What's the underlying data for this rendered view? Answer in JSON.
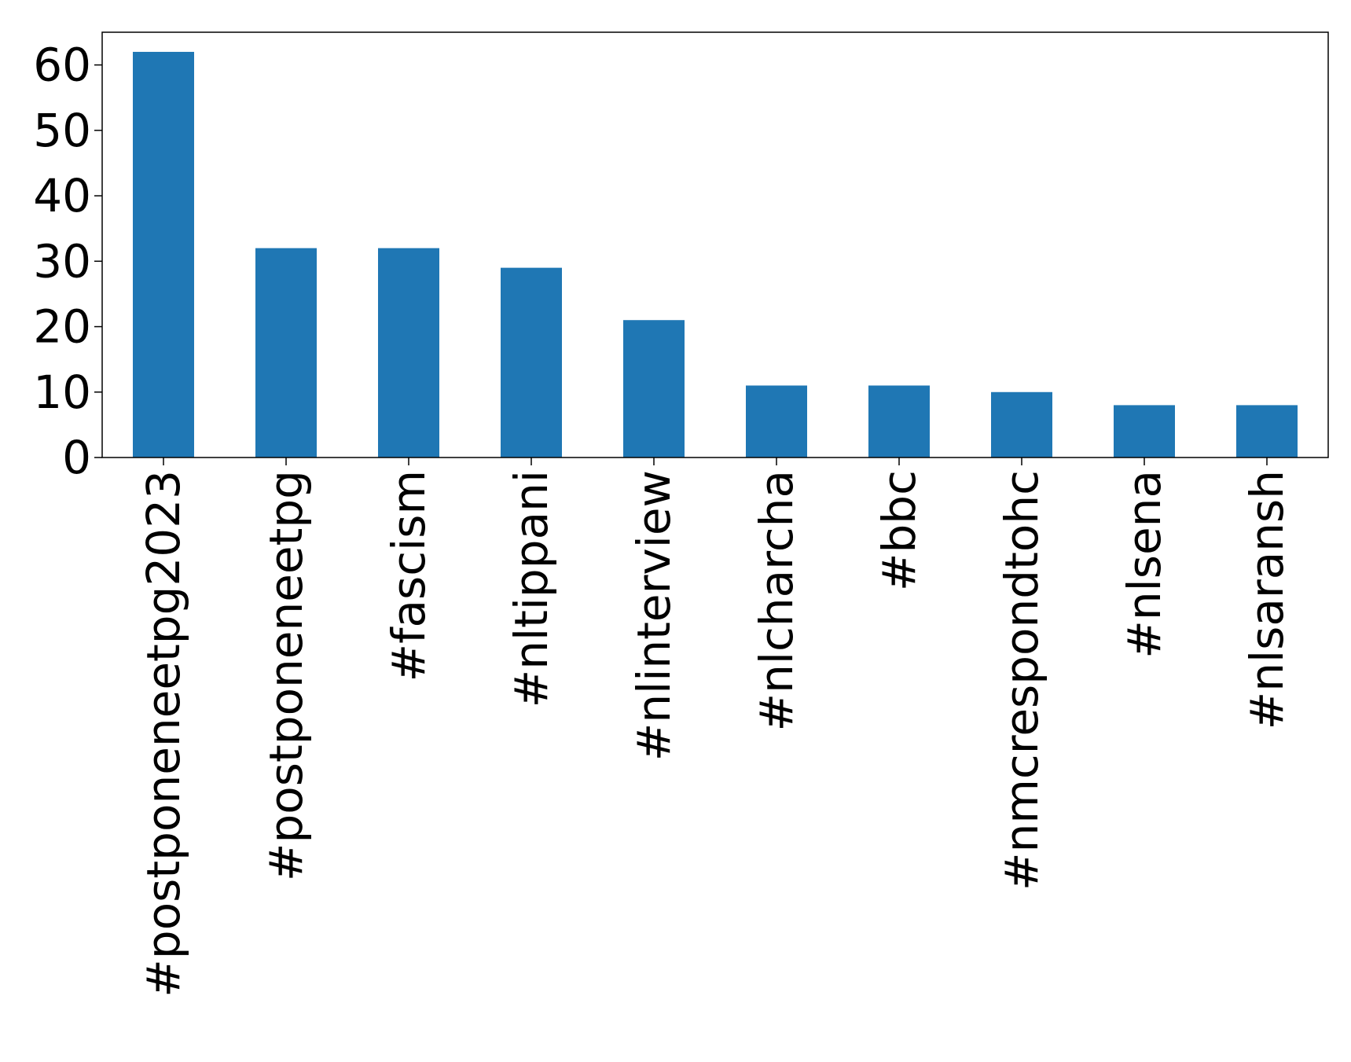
{
  "chart_data": {
    "type": "bar",
    "title": "",
    "xlabel": "",
    "ylabel": "",
    "categories": [
      "#postponeneetpg2023",
      "#postponeneetpg",
      "#fascism",
      "#nltippani",
      "#nlinterview",
      "#nlcharcha",
      "#bbc",
      "#nmcrespondtohc",
      "#nlsena",
      "#nlsaransh"
    ],
    "values": [
      62,
      32,
      32,
      29,
      21,
      11,
      11,
      10,
      8,
      8
    ],
    "ylim": [
      0,
      65
    ],
    "yticks": [
      0,
      10,
      20,
      30,
      40,
      50,
      60
    ],
    "ytick_labels": [
      "0",
      "10",
      "20",
      "30",
      "40",
      "50",
      "60"
    ],
    "bar_color": "#1f77b4",
    "grid": false,
    "legend": "none"
  }
}
